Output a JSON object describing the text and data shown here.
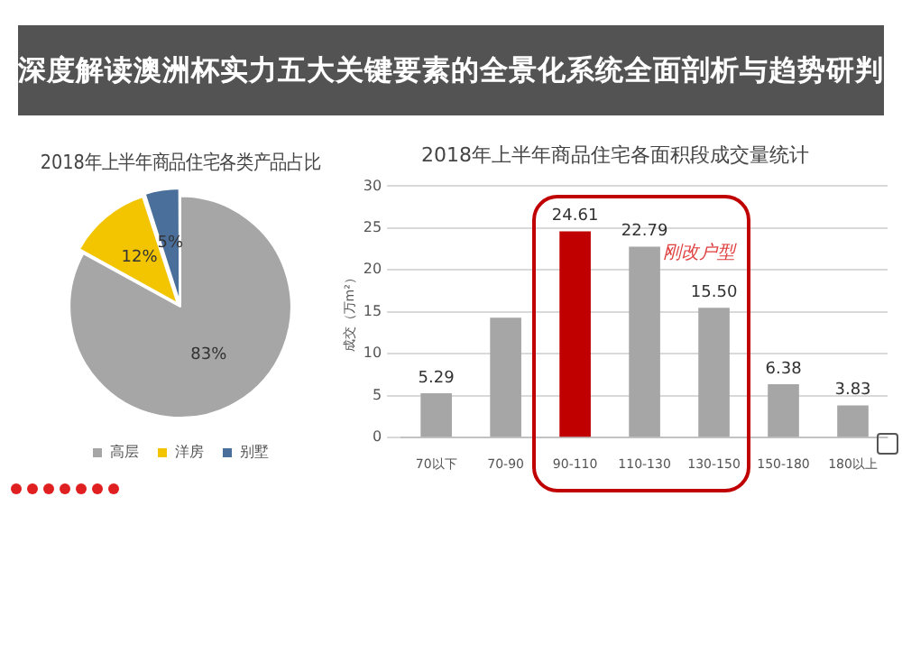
{
  "chart_data": [
    {
      "type": "pie",
      "title": "2018年上半年商品住宅各类产品占比",
      "categories": [
        "高层",
        "洋房",
        "别墅"
      ],
      "values": [
        83,
        12,
        5
      ],
      "colors": [
        "#a6a6a6",
        "#f2c500",
        "#4a6f9a"
      ],
      "value_labels": [
        "83%",
        "12%",
        "5%"
      ],
      "legend": "bottom",
      "annotations": [
        "深度解读澳洲杯实力五大关键要素的全景化系统全面剖析与趋势研判"
      ]
    },
    {
      "type": "bar",
      "title": "2018年上半年商品住宅各面积段成交量统计",
      "ylabel": "成交（万m²）",
      "categories": [
        "70以下",
        "70-90",
        "90-110",
        "110-130",
        "130-150",
        "150-180",
        "180以上"
      ],
      "values": [
        5.29,
        14.3,
        24.61,
        22.79,
        15.5,
        6.38,
        3.83
      ],
      "colors": [
        "#a6a6a6",
        "#a6a6a6",
        "#c00000",
        "#a6a6a6",
        "#a6a6a6",
        "#a6a6a6",
        "#a6a6a6"
      ],
      "value_labels": [
        "5.29",
        null,
        "24.61",
        "22.79",
        "15.50",
        "6.38",
        "3.83"
      ],
      "ylim": [
        0,
        30
      ],
      "yticks": [
        0,
        5,
        10,
        15,
        20,
        25,
        30
      ],
      "grid": "y",
      "legend": false,
      "annotations": [
        {
          "text": "刚改户型",
          "x": "110-130",
          "y": 22
        }
      ]
    }
  ]
}
